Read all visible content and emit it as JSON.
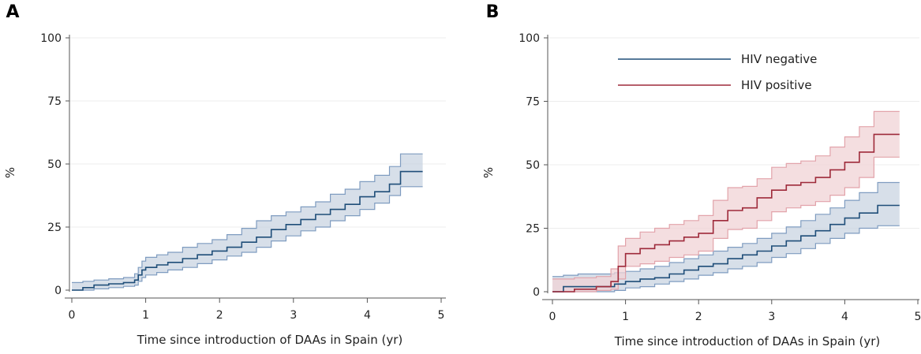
{
  "chart_data": [
    {
      "type": "line",
      "panel_label": "A",
      "xlabel": "Time since introduction of DAAs in Spain (yr)",
      "ylabel": "%",
      "xlim": [
        0,
        5
      ],
      "ylim": [
        0,
        100
      ],
      "xticks": [
        "0",
        "1",
        "2",
        "3",
        "4",
        "5"
      ],
      "yticks": [
        "0",
        "25",
        "50",
        "75",
        "100"
      ],
      "grid": "horizontal",
      "legend": null,
      "series": [
        {
          "color": "#1f4e79",
          "band_color": "#c9d4e1",
          "band_edge_color": "#7f9cc0",
          "x": [
            0.0,
            0.15,
            0.3,
            0.5,
            0.7,
            0.85,
            0.9,
            0.95,
            1.0,
            1.15,
            1.3,
            1.5,
            1.7,
            1.9,
            2.1,
            2.3,
            2.5,
            2.7,
            2.9,
            3.1,
            3.3,
            3.5,
            3.7,
            3.9,
            4.1,
            4.3,
            4.45,
            4.75
          ],
          "y": [
            0,
            1,
            2,
            2.5,
            3,
            4,
            6,
            8,
            9,
            10,
            11,
            12.5,
            14,
            15.5,
            17,
            19,
            21,
            24,
            26,
            28,
            30,
            32,
            34,
            37,
            39,
            42,
            47,
            47
          ],
          "lower": [
            0,
            0,
            0.5,
            1,
            1.5,
            2,
            3.5,
            5,
            6,
            7,
            8,
            9,
            10.5,
            12,
            13.5,
            15,
            17,
            19.5,
            21.5,
            23.5,
            25,
            27.5,
            29.5,
            32,
            34.5,
            37.5,
            41,
            41
          ],
          "upper": [
            3,
            3.5,
            4,
            4.5,
            5,
            6.5,
            9,
            11.5,
            13,
            14,
            15,
            17,
            18.5,
            20,
            22,
            24.5,
            27.5,
            29.5,
            31,
            33,
            35,
            38,
            40,
            43,
            45.5,
            49,
            54,
            54
          ]
        }
      ]
    },
    {
      "type": "line",
      "panel_label": "B",
      "xlabel": "Time since introduction of DAAs in Spain (yr)",
      "ylabel": "%",
      "xlim": [
        0,
        5
      ],
      "ylim": [
        0,
        100
      ],
      "xticks": [
        "0",
        "1",
        "2",
        "3",
        "4",
        "5"
      ],
      "yticks": [
        "0",
        "25",
        "50",
        "75",
        "100"
      ],
      "grid": "horizontal",
      "legend": "top-center",
      "series": [
        {
          "name": "HIV negative",
          "color": "#1f4e79",
          "band_color": "#c9d4e1",
          "band_edge_color": "#7f9cc0",
          "x": [
            0.0,
            0.15,
            0.35,
            0.6,
            0.85,
            1.0,
            1.2,
            1.4,
            1.6,
            1.8,
            2.0,
            2.2,
            2.4,
            2.6,
            2.8,
            3.0,
            3.2,
            3.4,
            3.6,
            3.8,
            4.0,
            4.2,
            4.45,
            4.75
          ],
          "y": [
            0,
            2,
            2,
            2,
            3,
            4,
            5,
            5.5,
            7,
            8.5,
            10,
            11,
            13,
            14.5,
            16,
            18,
            20,
            22,
            24,
            26.5,
            29,
            31,
            34,
            34
          ],
          "lower": [
            0,
            0,
            0,
            0,
            0.5,
            1.5,
            2,
            3,
            4,
            5,
            6.5,
            7.5,
            9,
            10,
            11.5,
            13.5,
            15,
            17,
            19,
            21,
            23,
            25,
            26,
            26
          ],
          "upper": [
            6,
            6.5,
            7,
            7,
            7.5,
            8,
            9,
            10,
            11.5,
            13,
            14.5,
            16,
            17.5,
            19,
            21,
            23,
            25.5,
            28,
            30.5,
            33,
            36,
            39,
            43,
            43
          ]
        },
        {
          "name": "HIV positive",
          "color": "#9e2a3a",
          "band_color": "#f0d3d6",
          "band_edge_color": "#e2a3aa",
          "x": [
            0.0,
            0.3,
            0.6,
            0.8,
            0.9,
            1.0,
            1.2,
            1.4,
            1.6,
            1.8,
            2.0,
            2.2,
            2.4,
            2.6,
            2.8,
            3.0,
            3.2,
            3.4,
            3.6,
            3.8,
            4.0,
            4.2,
            4.4,
            4.75
          ],
          "y": [
            0,
            1,
            2,
            4,
            10,
            15,
            17,
            18.5,
            20,
            21.5,
            23,
            28,
            32,
            33,
            37,
            40,
            42,
            43,
            45,
            48,
            51,
            55,
            62,
            62
          ],
          "lower": [
            0,
            0,
            0.5,
            1,
            5,
            10,
            11,
            12,
            13.5,
            14.5,
            16,
            21,
            24.5,
            25,
            28,
            31.5,
            33,
            34,
            35.5,
            38,
            41,
            45,
            53,
            53
          ],
          "upper": [
            5,
            5.5,
            6,
            9,
            18,
            21,
            23.5,
            25,
            26.5,
            28,
            30,
            36,
            41,
            41.5,
            44.5,
            49,
            50.5,
            51.5,
            53.5,
            57,
            61,
            65,
            71,
            71
          ]
        }
      ]
    }
  ]
}
